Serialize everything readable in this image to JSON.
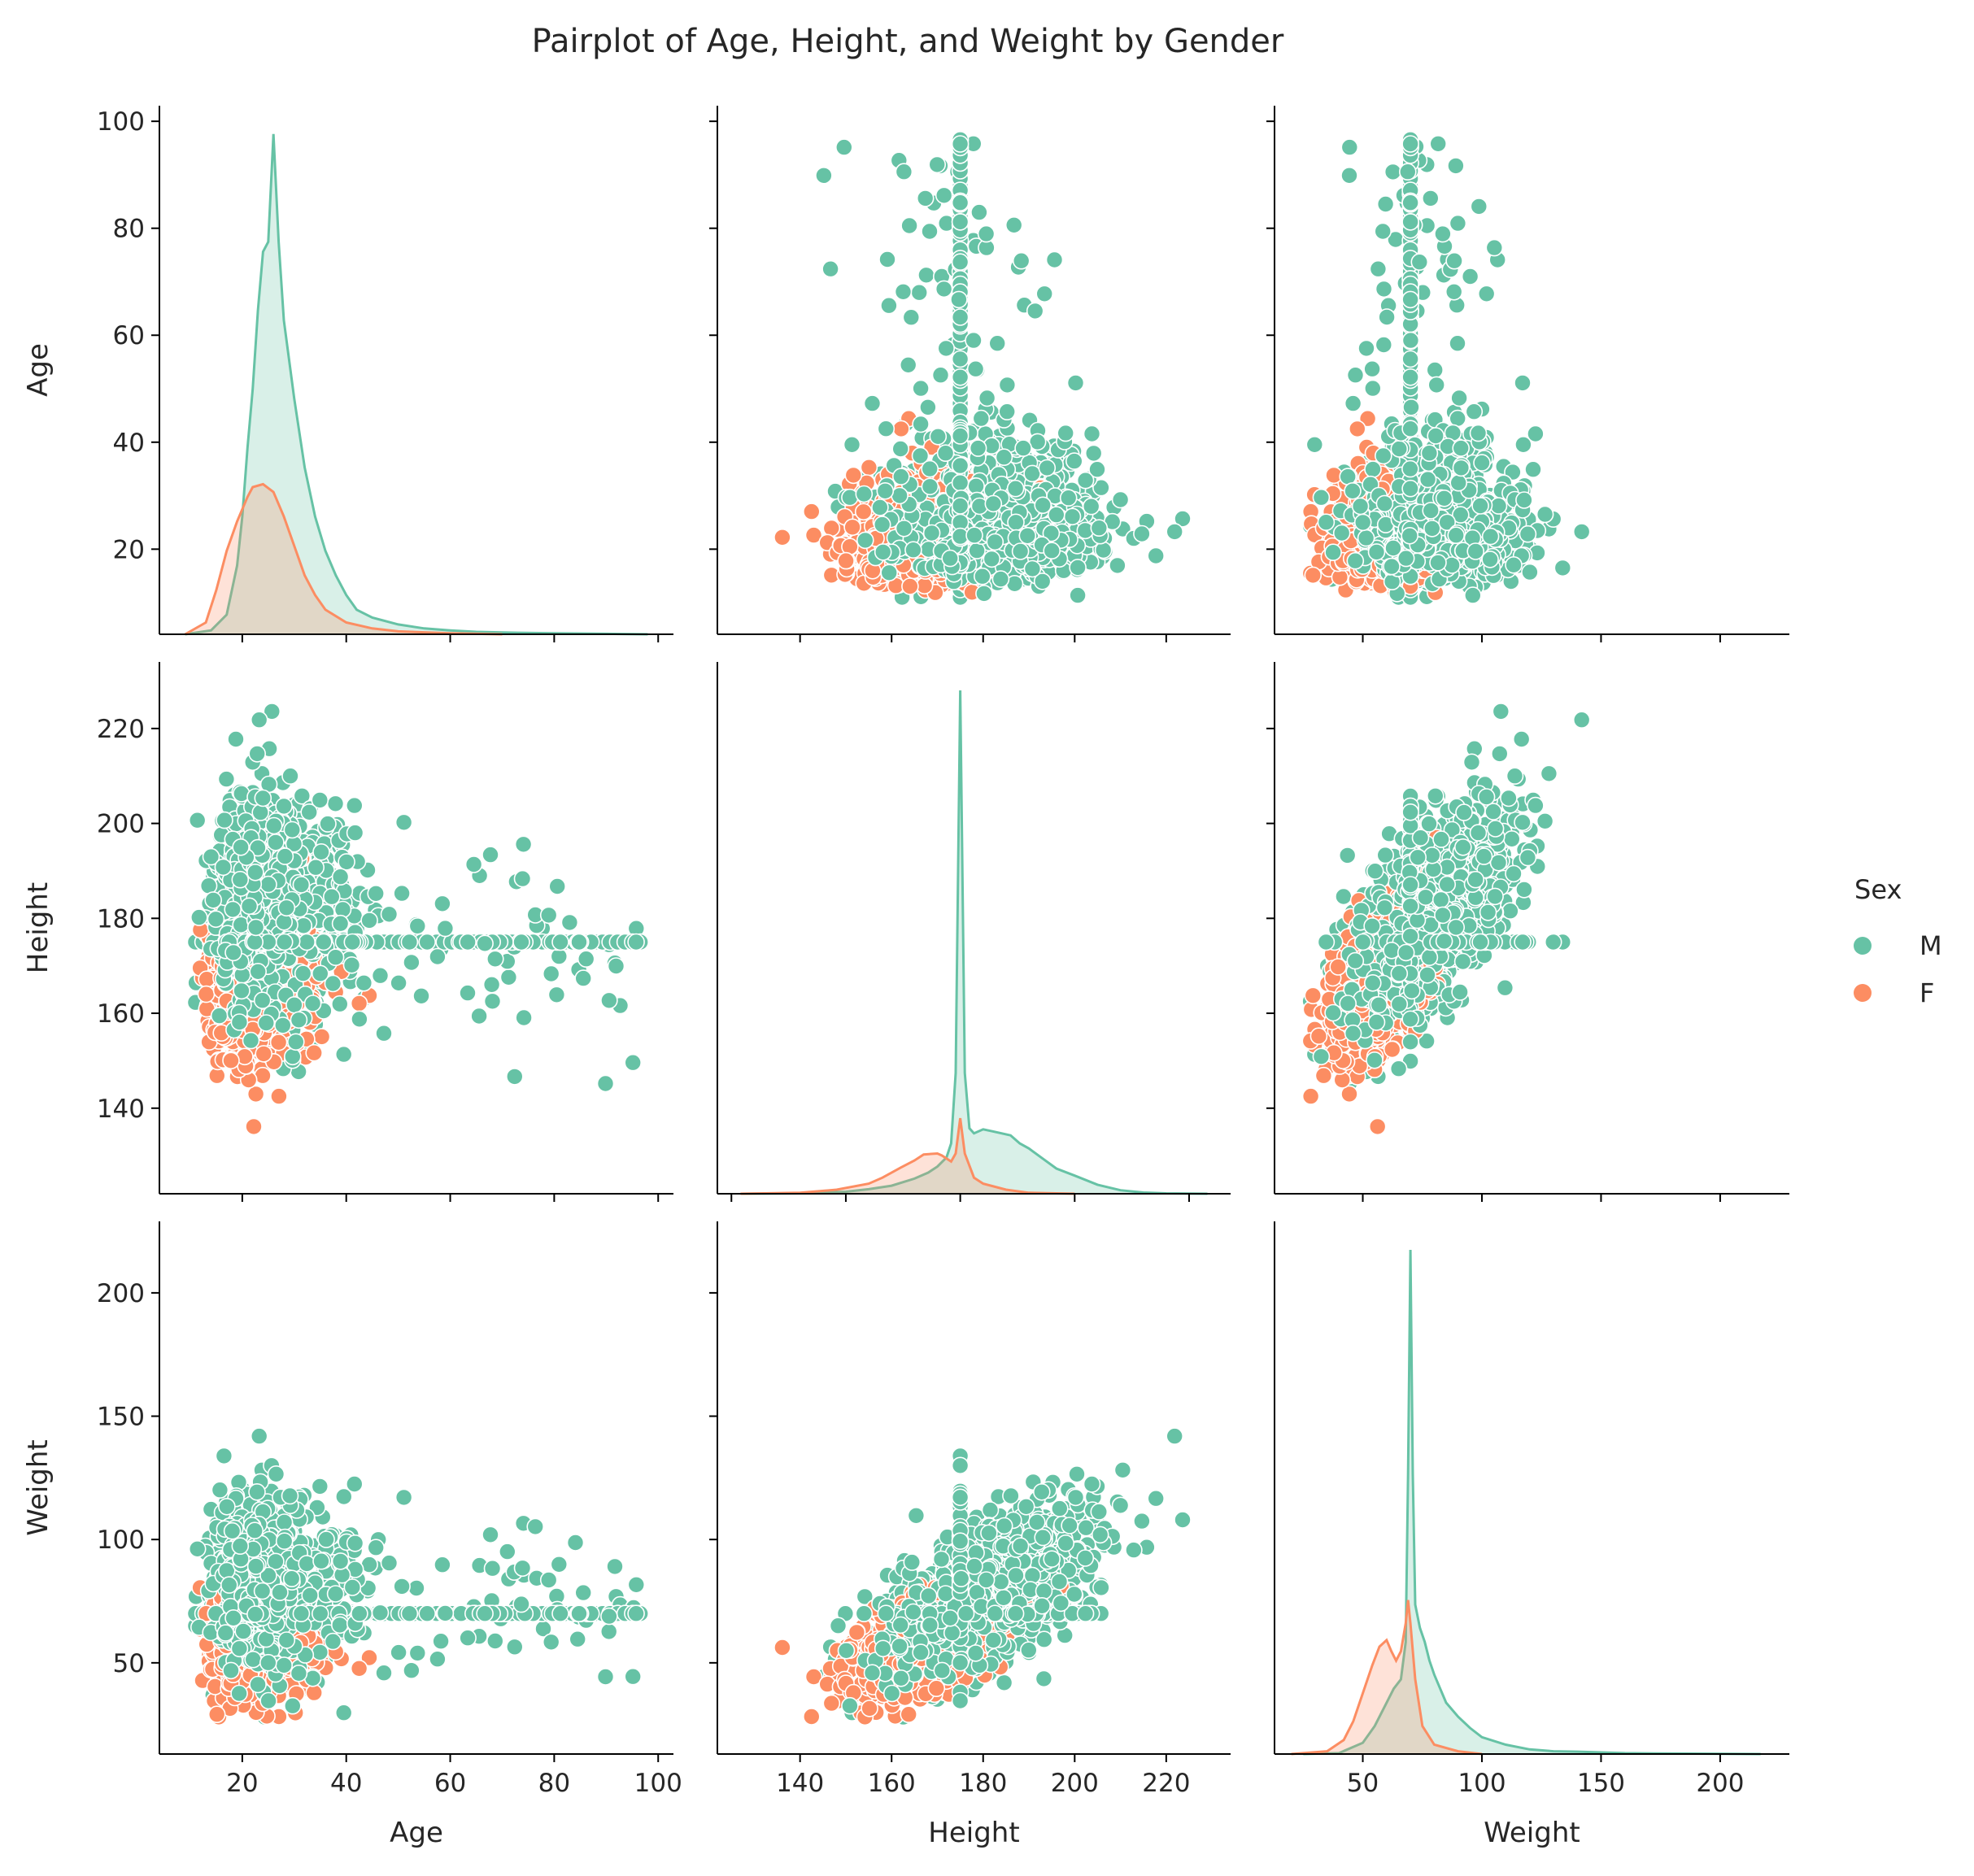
{
  "chart_data": {
    "type": "scatter",
    "title": "Pairplot of Age, Height, and Weight by Gender",
    "variables": [
      "Age",
      "Height",
      "Weight"
    ],
    "hue": "Sex",
    "legend": {
      "title": "Sex",
      "position": "right",
      "entries": [
        "M",
        "F"
      ]
    },
    "colors": {
      "M": "#66c2a5",
      "F": "#fc8d62"
    },
    "grid": false,
    "axes": {
      "Age": {
        "range": [
          5,
          102
        ],
        "ticks": [
          20,
          40,
          60,
          80,
          100
        ],
        "diag_ticks": [
          20,
          40,
          60,
          80,
          100
        ]
      },
      "Height": {
        "range": [
          123,
          233
        ],
        "ticks": [
          140,
          160,
          180,
          200,
          220
        ],
        "diag_ticks": [
          125,
          150,
          175,
          200,
          225
        ]
      },
      "Weight": {
        "range": [
          15,
          227
        ],
        "ticks": [
          50,
          100,
          150,
          200
        ],
        "diag_ticks": [
          50,
          100,
          150,
          200
        ]
      }
    },
    "kde": {
      "Age": {
        "M": [
          [
            9,
            0
          ],
          [
            14,
            0.4
          ],
          [
            17,
            2
          ],
          [
            19,
            7
          ],
          [
            20,
            12
          ],
          [
            21,
            19
          ],
          [
            22,
            25
          ],
          [
            23,
            33
          ],
          [
            24,
            39
          ],
          [
            25,
            40
          ],
          [
            26,
            51
          ],
          [
            27,
            40
          ],
          [
            28,
            32
          ],
          [
            30,
            24
          ],
          [
            32,
            17
          ],
          [
            34,
            12
          ],
          [
            36,
            8.5
          ],
          [
            38,
            6
          ],
          [
            40,
            4
          ],
          [
            42,
            2.5
          ],
          [
            45,
            1.7
          ],
          [
            50,
            1.0
          ],
          [
            55,
            0.6
          ],
          [
            60,
            0.4
          ],
          [
            65,
            0.25
          ],
          [
            70,
            0.18
          ],
          [
            80,
            0.1
          ],
          [
            90,
            0.05
          ],
          [
            98,
            0
          ]
        ],
        "F": [
          [
            9,
            0
          ],
          [
            13,
            1.2
          ],
          [
            15,
            4.5
          ],
          [
            17,
            8.5
          ],
          [
            19,
            11.5
          ],
          [
            21,
            14
          ],
          [
            22,
            15
          ],
          [
            24,
            15.3
          ],
          [
            26,
            14.5
          ],
          [
            28,
            12
          ],
          [
            30,
            9
          ],
          [
            32,
            6
          ],
          [
            34,
            4
          ],
          [
            36,
            2.5
          ],
          [
            40,
            1.2
          ],
          [
            45,
            0.6
          ],
          [
            50,
            0.3
          ],
          [
            60,
            0.1
          ],
          [
            70,
            0
          ]
        ]
      },
      "Height": {
        "M": [
          [
            127,
            0
          ],
          [
            140,
            0.04
          ],
          [
            150,
            0.2
          ],
          [
            155,
            0.45
          ],
          [
            160,
            0.8
          ],
          [
            165,
            1.5
          ],
          [
            168,
            2.1
          ],
          [
            170,
            2.7
          ],
          [
            172,
            3.6
          ],
          [
            173,
            5
          ],
          [
            174,
            12
          ],
          [
            175,
            50
          ],
          [
            176,
            12
          ],
          [
            177,
            6.5
          ],
          [
            178,
            6
          ],
          [
            180,
            6.4
          ],
          [
            182,
            6.2
          ],
          [
            184,
            6
          ],
          [
            186,
            5.8
          ],
          [
            188,
            5
          ],
          [
            190,
            4.5
          ],
          [
            193,
            3.5
          ],
          [
            196,
            2.5
          ],
          [
            200,
            1.8
          ],
          [
            205,
            0.9
          ],
          [
            210,
            0.35
          ],
          [
            215,
            0.12
          ],
          [
            220,
            0.04
          ],
          [
            229,
            0
          ]
        ],
        "F": [
          [
            127,
            0
          ],
          [
            140,
            0.1
          ],
          [
            148,
            0.4
          ],
          [
            155,
            1
          ],
          [
            158,
            1.6
          ],
          [
            162,
            2.6
          ],
          [
            165,
            3.3
          ],
          [
            167,
            3.9
          ],
          [
            170,
            4
          ],
          [
            171,
            3.8
          ],
          [
            173,
            3.2
          ],
          [
            174,
            4
          ],
          [
            175,
            7.5
          ],
          [
            176,
            4
          ],
          [
            178,
            1.6
          ],
          [
            180,
            1
          ],
          [
            185,
            0.4
          ],
          [
            190,
            0.1
          ],
          [
            200,
            0
          ]
        ]
      },
      "Weight": {
        "M": [
          [
            25,
            0
          ],
          [
            40,
            0.1
          ],
          [
            50,
            1.2
          ],
          [
            55,
            3
          ],
          [
            60,
            5.5
          ],
          [
            63,
            7
          ],
          [
            66,
            8
          ],
          [
            68,
            12
          ],
          [
            69,
            30
          ],
          [
            70,
            54
          ],
          [
            71,
            30
          ],
          [
            72,
            16
          ],
          [
            74,
            13.5
          ],
          [
            76,
            12
          ],
          [
            78,
            10
          ],
          [
            80,
            8.5
          ],
          [
            85,
            5.5
          ],
          [
            90,
            4
          ],
          [
            95,
            2.8
          ],
          [
            100,
            1.8
          ],
          [
            110,
            1
          ],
          [
            120,
            0.5
          ],
          [
            130,
            0.3
          ],
          [
            140,
            0.25
          ],
          [
            160,
            0.1
          ],
          [
            180,
            0.05
          ],
          [
            217,
            0
          ]
        ],
        "F": [
          [
            20,
            0
          ],
          [
            35,
            0.3
          ],
          [
            42,
            1.5
          ],
          [
            46,
            3.5
          ],
          [
            50,
            6.5
          ],
          [
            54,
            9.5
          ],
          [
            57,
            11.5
          ],
          [
            60,
            12.2
          ],
          [
            62,
            11
          ],
          [
            64,
            10
          ],
          [
            66,
            11
          ],
          [
            68,
            14
          ],
          [
            69,
            16.5
          ],
          [
            70,
            14
          ],
          [
            72,
            8
          ],
          [
            75,
            3
          ],
          [
            80,
            1
          ],
          [
            90,
            0.3
          ],
          [
            100,
            0
          ]
        ]
      }
    }
  }
}
